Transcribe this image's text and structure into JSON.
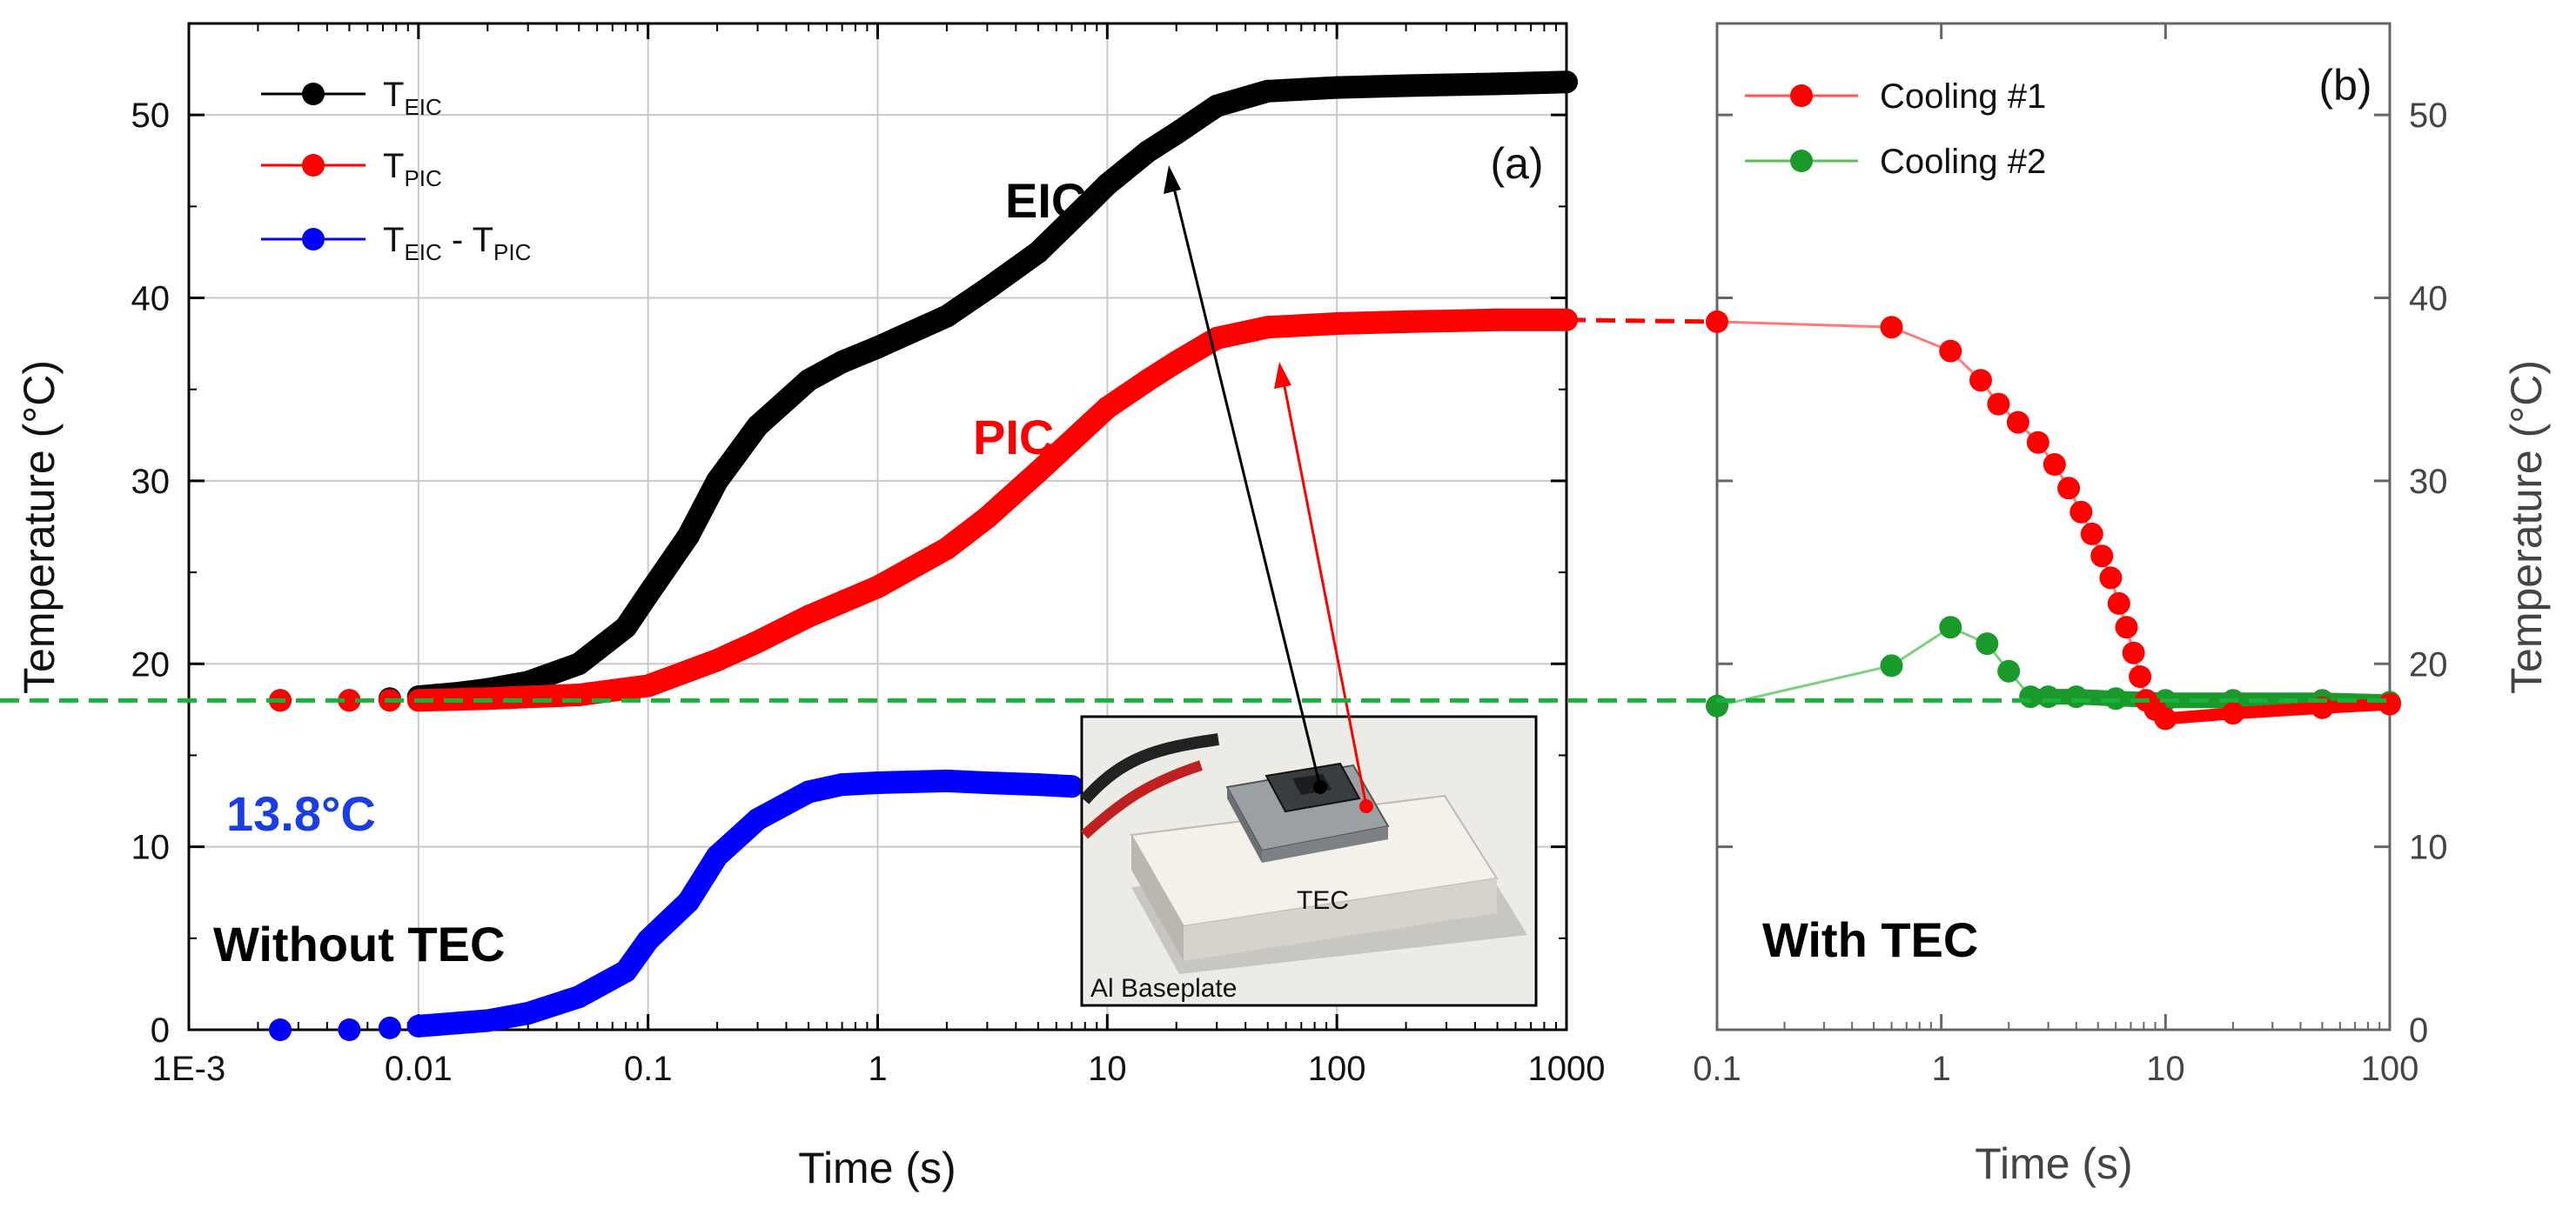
{
  "chart_data": [
    {
      "id": "a",
      "type": "scatter",
      "panel_label": "(a)",
      "xlabel": "Time (s)",
      "ylabel": "Temperature (°C)",
      "xscale": "log",
      "xlim": [
        0.001,
        1000
      ],
      "ylim": [
        0,
        55
      ],
      "x_ticks": [
        0.001,
        0.01,
        0.1,
        1,
        10,
        100,
        1000
      ],
      "x_tick_labels": [
        "1E-3",
        "0.01",
        "0.1",
        "1",
        "10",
        "100",
        "1000"
      ],
      "y_ticks": [
        0,
        10,
        20,
        30,
        40,
        50
      ],
      "y_tick_labels": [
        "0",
        "10",
        "20",
        "30",
        "40",
        "50"
      ],
      "grid": true,
      "legend_position": "top-left",
      "series": [
        {
          "name": "T_EIC",
          "legend": {
            "main": "T",
            "sub": "EIC"
          },
          "color": "#000000",
          "points": [
            [
              0.0025,
              18.0
            ],
            [
              0.005,
              18.0
            ],
            [
              0.0075,
              18.1
            ],
            [
              0.01,
              18.2
            ],
            [
              0.015,
              18.4
            ],
            [
              0.02,
              18.6
            ],
            [
              0.03,
              19.0
            ],
            [
              0.05,
              20.0
            ],
            [
              0.08,
              22.0
            ],
            [
              0.1,
              23.8
            ],
            [
              0.15,
              27.0
            ],
            [
              0.2,
              30.0
            ],
            [
              0.3,
              33.0
            ],
            [
              0.5,
              35.5
            ],
            [
              0.7,
              36.5
            ],
            [
              1,
              37.3
            ],
            [
              2,
              39.0
            ],
            [
              3,
              40.5
            ],
            [
              5,
              42.5
            ],
            [
              8,
              45.0
            ],
            [
              10,
              46.2
            ],
            [
              15,
              48.0
            ],
            [
              20,
              49.0
            ],
            [
              30,
              50.5
            ],
            [
              50,
              51.3
            ],
            [
              100,
              51.5
            ],
            [
              200,
              51.6
            ],
            [
              500,
              51.7
            ],
            [
              1000,
              51.8
            ]
          ]
        },
        {
          "name": "T_PIC",
          "legend": {
            "main": "T",
            "sub": "PIC"
          },
          "color": "#ff0000",
          "points": [
            [
              0.0025,
              18.0
            ],
            [
              0.005,
              18.0
            ],
            [
              0.0075,
              18.0
            ],
            [
              0.01,
              18.0
            ],
            [
              0.02,
              18.1
            ],
            [
              0.05,
              18.3
            ],
            [
              0.1,
              18.8
            ],
            [
              0.2,
              20.2
            ],
            [
              0.3,
              21.2
            ],
            [
              0.5,
              22.6
            ],
            [
              1,
              24.2
            ],
            [
              2,
              26.3
            ],
            [
              3,
              28.0
            ],
            [
              5,
              30.5
            ],
            [
              10,
              34.0
            ],
            [
              15,
              35.5
            ],
            [
              20,
              36.5
            ],
            [
              30,
              37.8
            ],
            [
              50,
              38.4
            ],
            [
              100,
              38.6
            ],
            [
              200,
              38.7
            ],
            [
              500,
              38.8
            ],
            [
              1000,
              38.8
            ]
          ]
        },
        {
          "name": "T_EIC - T_PIC",
          "legend": {
            "main1": "T",
            "sub1": "EIC",
            "sep": " - ",
            "main2": "T",
            "sub2": "PIC"
          },
          "color": "#0000ff",
          "points": [
            [
              0.0025,
              0.0
            ],
            [
              0.005,
              0.0
            ],
            [
              0.0075,
              0.1
            ],
            [
              0.01,
              0.2
            ],
            [
              0.02,
              0.5
            ],
            [
              0.03,
              0.9
            ],
            [
              0.05,
              1.8
            ],
            [
              0.08,
              3.2
            ],
            [
              0.1,
              4.9
            ],
            [
              0.15,
              7.0
            ],
            [
              0.2,
              9.5
            ],
            [
              0.3,
              11.5
            ],
            [
              0.5,
              13.0
            ],
            [
              0.7,
              13.4
            ],
            [
              1,
              13.5
            ],
            [
              2,
              13.6
            ],
            [
              3,
              13.5
            ],
            [
              5,
              13.4
            ],
            [
              7,
              13.3
            ]
          ]
        }
      ],
      "reference_line": {
        "value": 18.0,
        "style": "dashed",
        "color": "#1ab03c"
      },
      "annotations": [
        {
          "text": "EIC",
          "color": "#000000"
        },
        {
          "text": "PIC",
          "color": "#ff0000"
        },
        {
          "text": "13.8°C",
          "color": "#1a3ee6"
        },
        {
          "text": "Without TEC",
          "color": "#000000"
        }
      ],
      "inset": {
        "photo_labels": [
          "TEC",
          "Al Baseplate"
        ]
      }
    },
    {
      "id": "b",
      "type": "line",
      "panel_label": "(b)",
      "xlabel": "Time (s)",
      "ylabel": "Temperature (°C)",
      "xscale": "log",
      "xlim": [
        0.1,
        100
      ],
      "ylim": [
        0,
        55
      ],
      "x_ticks": [
        0.1,
        1,
        10,
        100
      ],
      "x_tick_labels": [
        "0.1",
        "1",
        "10",
        "100"
      ],
      "y_ticks": [
        0,
        10,
        20,
        30,
        40,
        50
      ],
      "y_tick_labels": [
        "0",
        "10",
        "20",
        "30",
        "40",
        "50"
      ],
      "grid": false,
      "y_axis_side": "right",
      "legend_position": "top-left",
      "series": [
        {
          "name": "Cooling #1",
          "color": "#ff0000",
          "points": [
            [
              0.1,
              38.7
            ],
            [
              0.6,
              38.4
            ],
            [
              1.1,
              37.1
            ],
            [
              1.5,
              35.5
            ],
            [
              1.8,
              34.2
            ],
            [
              2.2,
              33.2
            ],
            [
              2.7,
              32.1
            ],
            [
              3.2,
              30.9
            ],
            [
              3.7,
              29.6
            ],
            [
              4.2,
              28.3
            ],
            [
              4.7,
              27.1
            ],
            [
              5.2,
              25.9
            ],
            [
              5.7,
              24.7
            ],
            [
              6.2,
              23.3
            ],
            [
              6.7,
              22.0
            ],
            [
              7.2,
              20.6
            ],
            [
              7.7,
              19.3
            ],
            [
              8.2,
              18.0
            ],
            [
              9.0,
              17.5
            ],
            [
              10.0,
              17.0
            ],
            [
              20.0,
              17.3
            ],
            [
              50.0,
              17.6
            ],
            [
              100.0,
              17.8
            ]
          ]
        },
        {
          "name": "Cooling #2",
          "color": "#1a9a2a",
          "points": [
            [
              0.1,
              17.7
            ],
            [
              0.6,
              19.9
            ],
            [
              1.1,
              22.0
            ],
            [
              1.6,
              21.1
            ],
            [
              2.0,
              19.6
            ],
            [
              2.5,
              18.2
            ],
            [
              3,
              18.2
            ],
            [
              4,
              18.2
            ],
            [
              6,
              18.1
            ],
            [
              10,
              18.0
            ],
            [
              20,
              18.0
            ],
            [
              50,
              18.0
            ],
            [
              100,
              17.9
            ]
          ]
        }
      ],
      "reference_line": {
        "value": 18.0,
        "style": "dashed",
        "color": "#1ab03c"
      },
      "annotations": [
        {
          "text": "With TEC",
          "color": "#000000"
        }
      ]
    }
  ]
}
